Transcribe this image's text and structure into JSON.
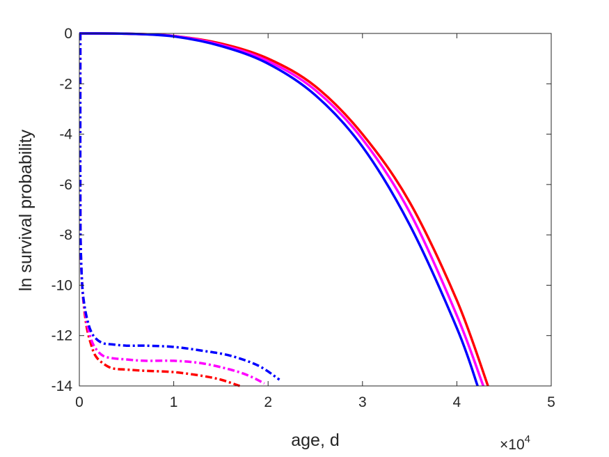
{
  "chart_data": {
    "type": "line",
    "title": "",
    "xlabel": "age, d",
    "ylabel": "ln survival probability",
    "x_exponent_label": "×10",
    "x_exponent_power": "4",
    "xlim": [
      0,
      50000
    ],
    "ylim": [
      -14,
      0.1
    ],
    "xticks": [
      0,
      10000,
      20000,
      30000,
      40000,
      50000
    ],
    "xtick_labels": [
      "0",
      "1",
      "2",
      "3",
      "4",
      "5"
    ],
    "yticks": [
      0,
      -2,
      -4,
      -6,
      -8,
      -10,
      -12,
      -14
    ],
    "ytick_labels": [
      "0",
      "-2",
      "-4",
      "-6",
      "-8",
      "-10",
      "-12",
      "-14"
    ],
    "grid": false,
    "legend": "none",
    "series": [
      {
        "color": "#ff0000",
        "style": "solid",
        "x": [
          0,
          5000,
          10000,
          15000,
          20000,
          25000,
          30000,
          35000,
          40000,
          43300
        ],
        "y": [
          0,
          -0.01,
          -0.1,
          -0.4,
          -1.0,
          -2.1,
          -4.0,
          -6.7,
          -10.6,
          -14.0
        ]
      },
      {
        "color": "#ff00ff",
        "style": "solid",
        "x": [
          0,
          5000,
          10000,
          15000,
          20000,
          25000,
          30000,
          35000,
          40000,
          42800
        ],
        "y": [
          0,
          -0.01,
          -0.1,
          -0.45,
          -1.1,
          -2.25,
          -4.2,
          -7.1,
          -11.2,
          -14.0
        ]
      },
      {
        "color": "#0000ff",
        "style": "solid",
        "x": [
          0,
          5000,
          10000,
          15000,
          20000,
          25000,
          30000,
          35000,
          40000,
          42200
        ],
        "y": [
          0,
          -0.01,
          -0.12,
          -0.5,
          -1.2,
          -2.45,
          -4.5,
          -7.6,
          -11.7,
          -14.0
        ]
      },
      {
        "color": "#ff0000",
        "style": "dashdot",
        "x": [
          100,
          100,
          150,
          300,
          500,
          800,
          1200,
          1700,
          2500,
          3500,
          5000,
          7000,
          10000,
          13000,
          15000,
          17000
        ],
        "y": [
          0,
          -6.5,
          -8.5,
          -10.0,
          -10.9,
          -11.7,
          -12.3,
          -12.8,
          -13.1,
          -13.3,
          -13.35,
          -13.4,
          -13.45,
          -13.6,
          -13.75,
          -14.0
        ]
      },
      {
        "color": "#ff00ff",
        "style": "dashdot",
        "x": [
          100,
          100,
          150,
          300,
          500,
          800,
          1200,
          1700,
          2500,
          3500,
          5000,
          7000,
          10000,
          13000,
          16000,
          18000,
          19600
        ],
        "y": [
          0,
          -6.5,
          -8.5,
          -10.0,
          -10.8,
          -11.5,
          -12.1,
          -12.5,
          -12.8,
          -12.9,
          -12.95,
          -13.0,
          -13.0,
          -13.1,
          -13.35,
          -13.6,
          -13.9
        ]
      },
      {
        "color": "#0000ff",
        "style": "dashdot",
        "x": [
          100,
          100,
          150,
          300,
          500,
          800,
          1200,
          1700,
          2500,
          3500,
          5000,
          7000,
          10000,
          13000,
          16000,
          19000,
          21200
        ],
        "y": [
          0,
          -6.5,
          -8.5,
          -10.0,
          -10.7,
          -11.3,
          -11.8,
          -12.1,
          -12.3,
          -12.35,
          -12.4,
          -12.4,
          -12.45,
          -12.6,
          -12.8,
          -13.2,
          -13.75
        ]
      }
    ]
  }
}
